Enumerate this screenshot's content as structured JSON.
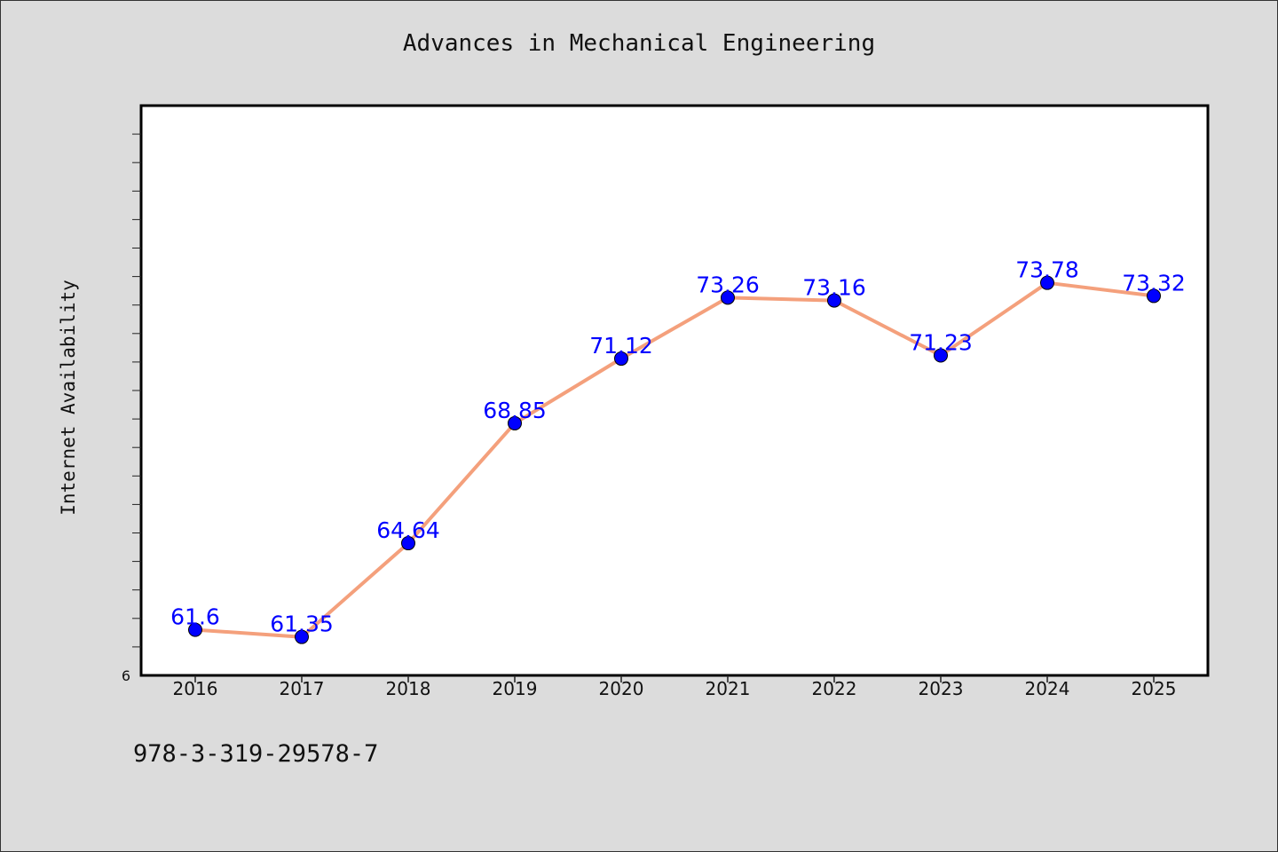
{
  "chart_data": {
    "type": "line",
    "title": "Advances in Mechanical Engineering",
    "ylabel": "Internet Availability",
    "xlabel": "",
    "categories": [
      "2016",
      "2017",
      "2018",
      "2019",
      "2020",
      "2021",
      "2022",
      "2023",
      "2024",
      "2025"
    ],
    "series": [
      {
        "values": [
          61.6,
          61.35,
          64.64,
          68.85,
          71.12,
          73.26,
          73.16,
          71.23,
          73.78,
          73.32
        ],
        "labels": [
          "61.6",
          "61.35",
          "64.64",
          "68.85",
          "71.12",
          "73.26",
          "73.16",
          "71.23",
          "73.78",
          "73.32"
        ],
        "line_color": "#f4a07c",
        "marker_color": "#0000ff"
      }
    ],
    "ylim": [
      60,
      80
    ],
    "y_tick_label": "6",
    "grid": false,
    "legend": "none"
  },
  "footer_text": "978-3-319-29578-7"
}
